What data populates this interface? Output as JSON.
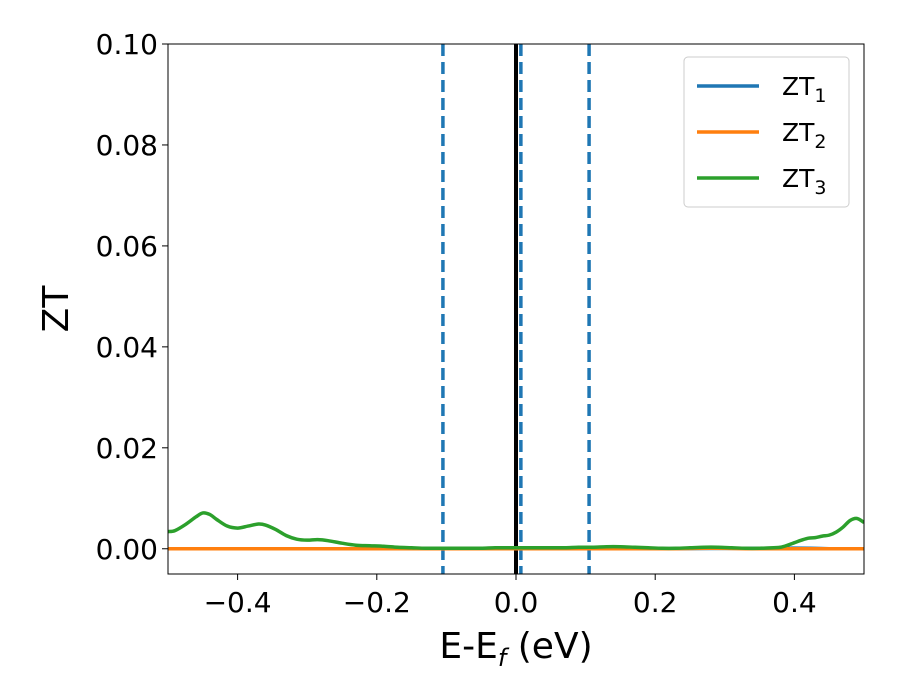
{
  "chart_data": {
    "type": "line",
    "xlabel": "E-E",
    "xlabel_sub": "f",
    "xlabel_suffix": " (eV)",
    "ylabel": "ZT",
    "xlim": [
      -0.5,
      0.5
    ],
    "ylim": [
      -0.005,
      0.1
    ],
    "xticks": [
      -0.4,
      -0.2,
      0.0,
      0.2,
      0.4
    ],
    "xtick_labels": [
      "−0.4",
      "−0.2",
      "0.0",
      "0.2",
      "0.4"
    ],
    "yticks": [
      0.0,
      0.02,
      0.04,
      0.06,
      0.08,
      0.1
    ],
    "ytick_labels": [
      "0.00",
      "0.02",
      "0.04",
      "0.06",
      "0.08",
      "0.10"
    ],
    "grid": false,
    "legend_position": "top-right",
    "vlines": [
      {
        "x": -0.105,
        "style": "dashed",
        "color": "#1f77b4"
      },
      {
        "x": 0.007,
        "style": "dashed",
        "color": "#1f77b4"
      },
      {
        "x": 0.105,
        "style": "dashed",
        "color": "#1f77b4"
      },
      {
        "x": 0.0,
        "style": "solid",
        "color": "#000000"
      }
    ],
    "series": [
      {
        "name": "ZT",
        "name_sub": "1",
        "color": "#1f77b4",
        "x": [
          -0.5,
          -0.3,
          -0.1,
          0.0,
          0.2,
          0.4,
          0.45,
          0.5
        ],
        "y": [
          0.0,
          0.0,
          0.0,
          0.0,
          0.0,
          0.00012,
          0.0,
          0.0
        ]
      },
      {
        "name": "ZT",
        "name_sub": "2",
        "color": "#ff7f0e",
        "x": [
          -0.5,
          -0.3,
          -0.1,
          0.0,
          0.2,
          0.28,
          0.35,
          0.5
        ],
        "y": [
          0.0,
          0.0,
          0.0,
          0.0,
          0.0,
          0.0001,
          0.0,
          0.0
        ]
      },
      {
        "name": "ZT",
        "name_sub": "3",
        "color": "#2ca02c",
        "x": [
          -0.5,
          -0.49,
          -0.475,
          -0.46,
          -0.45,
          -0.44,
          -0.43,
          -0.415,
          -0.4,
          -0.385,
          -0.37,
          -0.36,
          -0.345,
          -0.33,
          -0.315,
          -0.3,
          -0.285,
          -0.27,
          -0.25,
          -0.23,
          -0.21,
          -0.19,
          -0.17,
          -0.15,
          -0.13,
          -0.11,
          -0.09,
          -0.07,
          -0.05,
          -0.03,
          -0.01,
          0.01,
          0.03,
          0.05,
          0.07,
          0.09,
          0.11,
          0.13,
          0.15,
          0.17,
          0.19,
          0.21,
          0.23,
          0.25,
          0.27,
          0.29,
          0.31,
          0.33,
          0.35,
          0.37,
          0.38,
          0.39,
          0.4,
          0.41,
          0.42,
          0.43,
          0.44,
          0.45,
          0.46,
          0.47,
          0.48,
          0.49,
          0.5
        ],
        "y": [
          0.0034,
          0.0036,
          0.0048,
          0.0063,
          0.0071,
          0.0068,
          0.0058,
          0.0045,
          0.0041,
          0.0045,
          0.0049,
          0.0047,
          0.0038,
          0.0026,
          0.0019,
          0.0017,
          0.0018,
          0.0016,
          0.0011,
          0.0007,
          0.0006,
          0.0005,
          0.0003,
          0.0002,
          0.0001,
          0.0001,
          0.0001,
          0.0001,
          0.0001,
          0.0002,
          0.0002,
          0.0002,
          0.0002,
          0.0002,
          0.0002,
          0.0003,
          0.0003,
          0.0004,
          0.0004,
          0.0003,
          0.0002,
          0.0001,
          0.0001,
          0.0002,
          0.0003,
          0.0003,
          0.0002,
          0.0001,
          0.0001,
          0.0002,
          0.0003,
          0.0007,
          0.0012,
          0.0017,
          0.0021,
          0.0022,
          0.0025,
          0.0027,
          0.0033,
          0.0043,
          0.0056,
          0.006,
          0.0052
        ]
      }
    ]
  }
}
